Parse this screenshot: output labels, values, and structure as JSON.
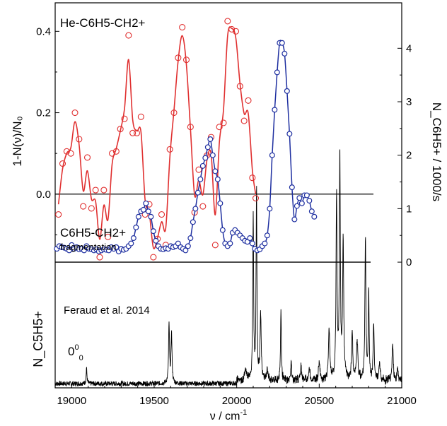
{
  "chart_data": {
    "type": "line",
    "x_axis": {
      "label_main": "ν / cm",
      "label_sup": "-1",
      "range": [
        18900,
        21000
      ],
      "ticks": [
        19000,
        19500,
        20000,
        20500,
        21000
      ],
      "tick_labels": [
        "19000",
        "19500",
        "20000",
        "20500",
        "21000"
      ]
    },
    "top_panel": {
      "ylabel_left": "1-N(ν)/N₀",
      "ylim_left": [
        -0.2,
        0.47
      ],
      "left_ticks": [
        0.0,
        0.2,
        0.4
      ],
      "left_tick_labels": [
        "0.0",
        "0.2",
        "0.4"
      ],
      "ylabel_right": "N_C6H5+ / 1000/s",
      "ylim_right": [
        -0.25,
        4.85
      ],
      "right_ticks": [
        0,
        1,
        2,
        3,
        4
      ],
      "right_tick_labels": [
        "0",
        "1",
        "2",
        "3",
        "4"
      ],
      "annotations": {
        "he_label": "He-C6H5-CH2+",
        "frag_label": "C6H5-CH2+",
        "frag_sub": "fragmentation"
      },
      "series": [
        {
          "color": "#e03030",
          "axis": "left",
          "points": [
            [
              18920,
              -0.05
            ],
            [
              18945,
              0.075
            ],
            [
              18970,
              0.105
            ],
            [
              18995,
              0.1
            ],
            [
              19020,
              0.2
            ],
            [
              19045,
              0.135
            ],
            [
              19070,
              -0.03
            ],
            [
              19095,
              0.09
            ],
            [
              19120,
              -0.035
            ],
            [
              19145,
              0.01
            ],
            [
              19170,
              -0.155
            ],
            [
              19195,
              0.01
            ],
            [
              19220,
              -0.105
            ],
            [
              19245,
              0.1
            ],
            [
              19270,
              0.105
            ],
            [
              19295,
              0.16
            ],
            [
              19320,
              0.185
            ],
            [
              19345,
              0.39
            ],
            [
              19370,
              0.15
            ],
            [
              19395,
              0.15
            ],
            [
              19420,
              0.19
            ],
            [
              19445,
              -0.05
            ],
            [
              19470,
              -0.025
            ],
            [
              19495,
              -0.155
            ],
            [
              19520,
              -0.11
            ],
            [
              19545,
              -0.05
            ],
            [
              19570,
              -0.125
            ],
            [
              19595,
              0.11
            ],
            [
              19620,
              0.2
            ],
            [
              19645,
              0.335
            ],
            [
              19670,
              0.41
            ],
            [
              19695,
              0.33
            ],
            [
              19720,
              0.165
            ],
            [
              19745,
              -0.045
            ],
            [
              19770,
              0.06
            ],
            [
              19795,
              -0.03
            ],
            [
              19820,
              0.095
            ],
            [
              19845,
              0.14
            ],
            [
              19870,
              -0.125
            ],
            [
              19895,
              0.165
            ],
            [
              19920,
              0.175
            ],
            [
              19945,
              0.425
            ],
            [
              19970,
              0.405
            ],
            [
              19995,
              0.4
            ],
            [
              20020,
              0.265
            ],
            [
              20045,
              0.18
            ],
            [
              20070,
              0.23
            ],
            [
              20095,
              0.04
            ],
            [
              20115,
              -0.01
            ]
          ]
        },
        {
          "color": "#1e2fa0",
          "axis": "right",
          "points": [
            [
              18910,
              0.25
            ],
            [
              18925,
              0.3
            ],
            [
              18940,
              0.28
            ],
            [
              18955,
              0.27
            ],
            [
              18970,
              0.25
            ],
            [
              18985,
              0.22
            ],
            [
              19000,
              0.32
            ],
            [
              19015,
              0.25
            ],
            [
              19030,
              0.28
            ],
            [
              19045,
              0.24
            ],
            [
              19060,
              0.25
            ],
            [
              19075,
              0.22
            ],
            [
              19090,
              0.3
            ],
            [
              19105,
              0.25
            ],
            [
              19120,
              0.24
            ],
            [
              19135,
              0.22
            ],
            [
              19150,
              0.24
            ],
            [
              19165,
              0.2
            ],
            [
              19180,
              0.22
            ],
            [
              19195,
              0.24
            ],
            [
              19210,
              0.23
            ],
            [
              19225,
              0.22
            ],
            [
              19240,
              0.28
            ],
            [
              19255,
              0.25
            ],
            [
              19270,
              0.28
            ],
            [
              19285,
              0.2
            ],
            [
              19300,
              0.25
            ],
            [
              19315,
              0.23
            ],
            [
              19330,
              0.25
            ],
            [
              19345,
              0.3
            ],
            [
              19360,
              0.35
            ],
            [
              19375,
              0.45
            ],
            [
              19390,
              0.65
            ],
            [
              19405,
              0.85
            ],
            [
              19420,
              0.95
            ],
            [
              19435,
              0.98
            ],
            [
              19450,
              1.1
            ],
            [
              19465,
              0.95
            ],
            [
              19480,
              0.85
            ],
            [
              19495,
              0.58
            ],
            [
              19510,
              0.4
            ],
            [
              19525,
              0.3
            ],
            [
              19540,
              0.25
            ],
            [
              19555,
              0.24
            ],
            [
              19570,
              0.26
            ],
            [
              19585,
              0.25
            ],
            [
              19600,
              0.3
            ],
            [
              19615,
              0.28
            ],
            [
              19630,
              0.3
            ],
            [
              19645,
              0.35
            ],
            [
              19660,
              0.28
            ],
            [
              19675,
              0.25
            ],
            [
              19690,
              0.22
            ],
            [
              19705,
              0.3
            ],
            [
              19720,
              0.45
            ],
            [
              19735,
              0.75
            ],
            [
              19750,
              1.0
            ],
            [
              19765,
              1.3
            ],
            [
              19780,
              1.55
            ],
            [
              19795,
              1.8
            ],
            [
              19810,
              1.95
            ],
            [
              19825,
              2.15
            ],
            [
              19840,
              2.3
            ],
            [
              19855,
              2.0
            ],
            [
              19870,
              1.7
            ],
            [
              19885,
              1.55
            ],
            [
              19900,
              1.1
            ],
            [
              19915,
              0.6
            ],
            [
              19930,
              0.35
            ],
            [
              19945,
              0.3
            ],
            [
              19960,
              0.35
            ],
            [
              19975,
              0.55
            ],
            [
              19990,
              0.6
            ],
            [
              20005,
              0.55
            ],
            [
              20020,
              0.5
            ],
            [
              20035,
              0.45
            ],
            [
              20050,
              0.4
            ],
            [
              20065,
              0.38
            ],
            [
              20080,
              0.45
            ],
            [
              20095,
              0.35
            ],
            [
              20110,
              0.25
            ],
            [
              20125,
              0.22
            ],
            [
              20140,
              0.24
            ],
            [
              20155,
              0.3
            ],
            [
              20170,
              0.35
            ],
            [
              20185,
              0.5
            ],
            [
              20200,
              1.0
            ],
            [
              20215,
              2.0
            ],
            [
              20230,
              2.85
            ],
            [
              20245,
              3.55
            ],
            [
              20260,
              4.1
            ],
            [
              20275,
              4.1
            ],
            [
              20290,
              3.9
            ],
            [
              20305,
              3.2
            ],
            [
              20320,
              2.4
            ],
            [
              20335,
              1.4
            ],
            [
              20350,
              0.8
            ],
            [
              20365,
              1.05
            ],
            [
              20380,
              1.2
            ],
            [
              20395,
              1.1
            ],
            [
              20410,
              1.25
            ],
            [
              20425,
              1.25
            ],
            [
              20440,
              1.15
            ],
            [
              20455,
              0.95
            ],
            [
              20470,
              0.85
            ]
          ]
        }
      ]
    },
    "bottom_panel": {
      "ylabel": "N_C5H5+",
      "annotation": "Feraud et al. 2014",
      "origin_label": "0",
      "origin_sup": "0",
      "origin_sub": "0",
      "baseline": 0,
      "peaks": [
        {
          "x": 19090,
          "h": 0.08,
          "w": 3
        },
        {
          "x": 19590,
          "h": 0.3,
          "w": 3.5
        },
        {
          "x": 19605,
          "h": 0.26,
          "w": 3.5
        },
        {
          "x": 20055,
          "h": 0.06,
          "w": 6
        },
        {
          "x": 20100,
          "h": 0.85,
          "w": 3
        },
        {
          "x": 20120,
          "h": 1.0,
          "w": 3
        },
        {
          "x": 20145,
          "h": 0.35,
          "w": 4
        },
        {
          "x": 20185,
          "h": 0.06,
          "w": 5
        },
        {
          "x": 20268,
          "h": 0.37,
          "w": 3
        },
        {
          "x": 20330,
          "h": 0.11,
          "w": 3
        },
        {
          "x": 20390,
          "h": 0.07,
          "w": 5
        },
        {
          "x": 20440,
          "h": 0.06,
          "w": 5
        },
        {
          "x": 20500,
          "h": 0.1,
          "w": 5
        },
        {
          "x": 20560,
          "h": 0.25,
          "w": 5
        },
        {
          "x": 20605,
          "h": 0.95,
          "w": 3.5
        },
        {
          "x": 20625,
          "h": 1.15,
          "w": 3.5
        },
        {
          "x": 20645,
          "h": 0.7,
          "w": 4
        },
        {
          "x": 20700,
          "h": 0.25,
          "w": 4
        },
        {
          "x": 20730,
          "h": 0.2,
          "w": 5
        },
        {
          "x": 20780,
          "h": 0.75,
          "w": 3.5
        },
        {
          "x": 20800,
          "h": 0.45,
          "w": 3
        },
        {
          "x": 20830,
          "h": 0.3,
          "w": 3.5
        },
        {
          "x": 20865,
          "h": 0.1,
          "w": 4
        },
        {
          "x": 20945,
          "h": 0.2,
          "w": 4
        },
        {
          "x": 20975,
          "h": 0.06,
          "w": 4
        }
      ]
    }
  }
}
